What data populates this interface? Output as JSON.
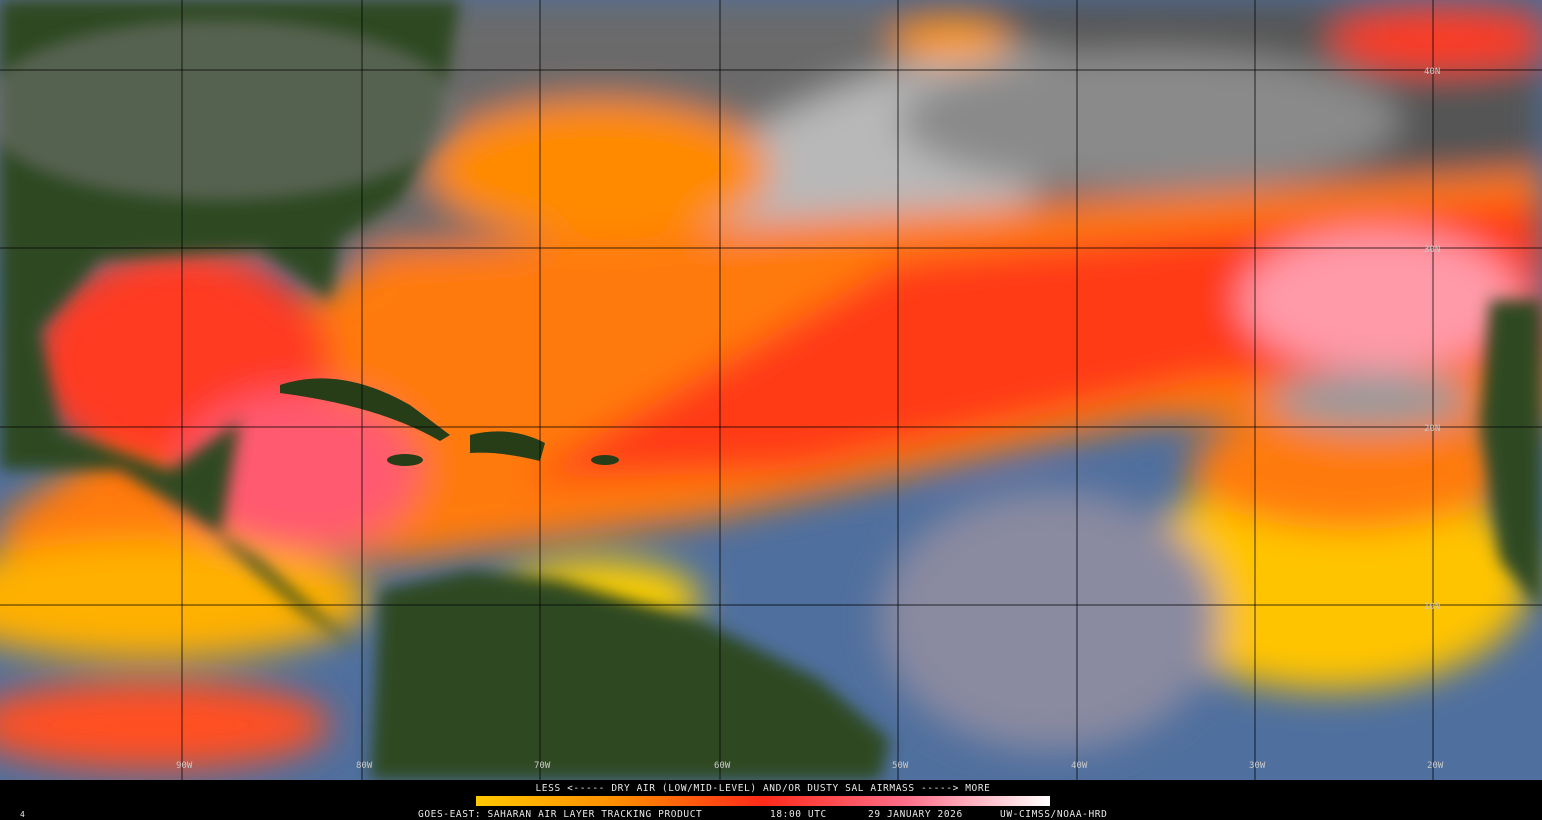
{
  "map": {
    "lat_labels": [
      "40N",
      "30N",
      "20N",
      "10N"
    ],
    "lon_labels": [
      "90W",
      "80W",
      "70W",
      "60W",
      "50W",
      "40W",
      "30W",
      "20W"
    ]
  },
  "legend": {
    "text": "LESS <----- DRY AIR (LOW/MID-LEVEL) AND/OR DUSTY SAL AIRMASS -----> MORE"
  },
  "footer": {
    "frame": "4",
    "product": "GOES-EAST: SAHARAN AIR LAYER TRACKING PRODUCT",
    "time": "18:00 UTC",
    "date": "29 JANUARY 2026",
    "credit": "UW-CIMSS/NOAA-HRD"
  }
}
